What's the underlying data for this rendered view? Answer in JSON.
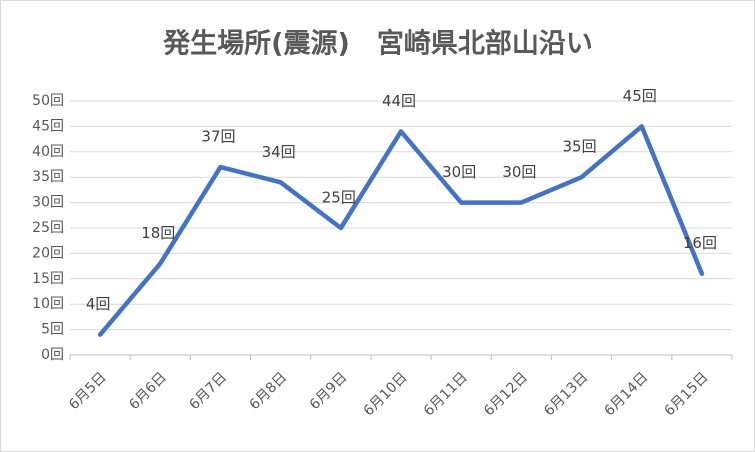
{
  "chart_data": {
    "type": "line",
    "title": "発生場所(震源)　宮崎県北部山沿い",
    "categories": [
      "6月5日",
      "6月6日",
      "6月7日",
      "6月8日",
      "6月9日",
      "6月10日",
      "6月11日",
      "6月12日",
      "6月13日",
      "6月14日",
      "6月15日"
    ],
    "series": [
      {
        "color": "#4472c4",
        "values": [
          4,
          18,
          37,
          34,
          25,
          44,
          30,
          30,
          35,
          45,
          16
        ],
        "value_labels": [
          "4回",
          "18回",
          "37回",
          "34回",
          "25回",
          "44回",
          "30回",
          "30回",
          "35回",
          "45回",
          "16回"
        ]
      }
    ],
    "ylim": [
      0,
      50
    ],
    "yticks": [
      {
        "value": 0,
        "label": "0回"
      },
      {
        "value": 5,
        "label": "5回"
      },
      {
        "value": 10,
        "label": "10回"
      },
      {
        "value": 15,
        "label": "15回"
      },
      {
        "value": 20,
        "label": "20回"
      },
      {
        "value": 25,
        "label": "25回"
      },
      {
        "value": 30,
        "label": "30回"
      },
      {
        "value": 35,
        "label": "35回"
      },
      {
        "value": 40,
        "label": "40回"
      },
      {
        "value": 45,
        "label": "45回"
      },
      {
        "value": 50,
        "label": "50回"
      }
    ],
    "grid": true
  }
}
